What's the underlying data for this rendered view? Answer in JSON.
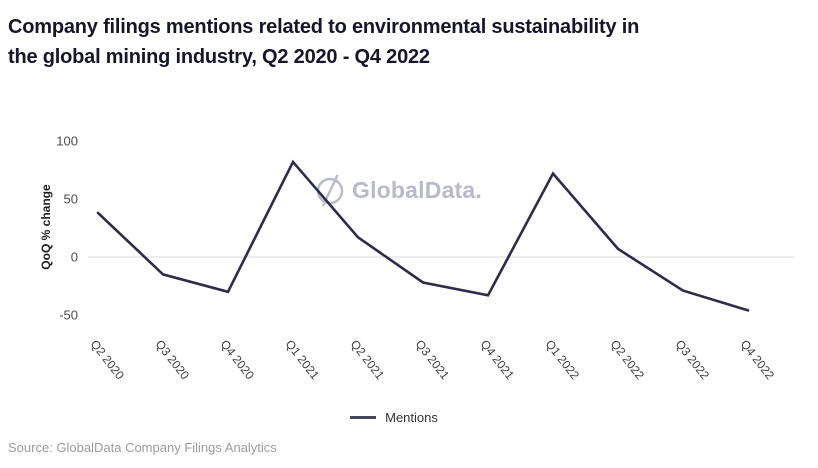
{
  "header": {
    "title": "Company filings mentions related to environmental sustainability in the global mining industry, Q2 2020 - Q4 2022"
  },
  "watermark": {
    "text": "GlobalData.",
    "icon": "globaldata-circle-slash-icon",
    "color": "#b9bac9"
  },
  "legend": {
    "items": [
      {
        "label": "Mentions",
        "swatch_color": "#47475a"
      }
    ]
  },
  "footer": {
    "source": "Source: GlobalData Company Filings Analytics"
  },
  "colors": {
    "title": "#16162a",
    "line": "#2d2d4b",
    "gridline": "#d9d9d9",
    "axis_tick_text": "#4d4d4d",
    "axis_label_text": "#1e1e1e",
    "x_label_text": "#3d3d3d",
    "watermark": "#b9bac9",
    "source_text": "#9c9c9c"
  },
  "chart_data": {
    "type": "line",
    "title": "Company filings mentions related to environmental sustainability in the global mining industry, Q2 2020 - Q4 2022",
    "xlabel": "",
    "ylabel": "QoQ % change",
    "categories": [
      "Q2 2020",
      "Q3 2020",
      "Q4 2020",
      "Q1 2021",
      "Q2 2021",
      "Q3 2021",
      "Q4 2021",
      "Q1 2022",
      "Q2 2022",
      "Q3 2022",
      "Q4 2022"
    ],
    "series": [
      {
        "name": "Mentions",
        "values": [
          38,
          -15,
          -30,
          82,
          17,
          -22,
          -33,
          72,
          7,
          -29,
          -46
        ]
      }
    ],
    "yticks": [
      100,
      50,
      0,
      -50
    ],
    "ylim": [
      -50,
      100
    ],
    "grid": "zero-baseline-only",
    "legend_position": "bottom-center",
    "x_label_rotation_deg": 52
  }
}
